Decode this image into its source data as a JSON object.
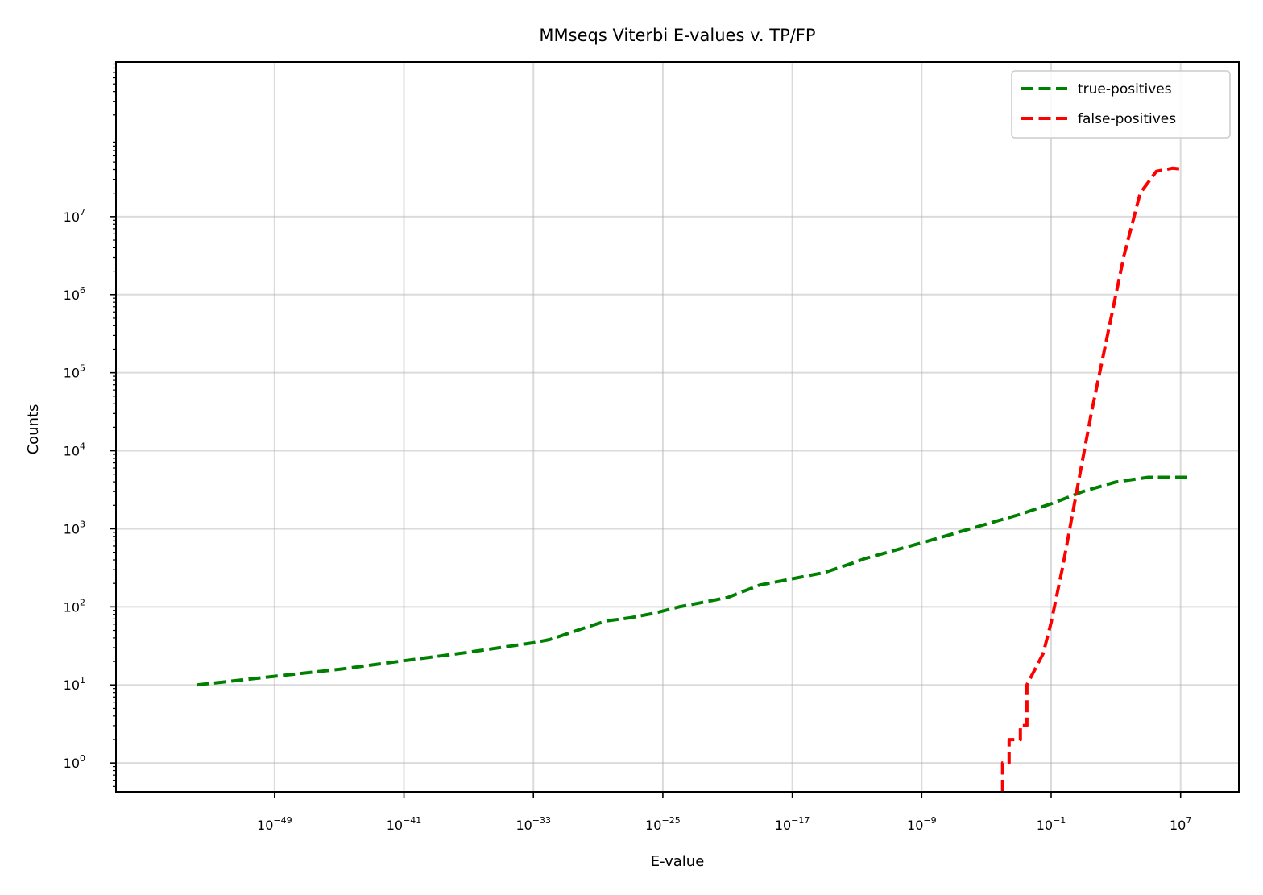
{
  "chart_data": {
    "type": "line",
    "title": "MMseqs Viterbi E-values v. TP/FP",
    "xlabel": "E-value",
    "ylabel": "Counts",
    "xscale": "log",
    "yscale": "log",
    "xlim_log10": [
      -58.8,
      10.6
    ],
    "ylim_log10": [
      -0.37,
      8.98
    ],
    "grid": true,
    "legend_position": "upper right",
    "x_ticks": [
      {
        "base": "10",
        "exp": "−49",
        "log10": -49
      },
      {
        "base": "10",
        "exp": "−41",
        "log10": -41
      },
      {
        "base": "10",
        "exp": "−33",
        "log10": -33
      },
      {
        "base": "10",
        "exp": "−25",
        "log10": -25
      },
      {
        "base": "10",
        "exp": "−17",
        "log10": -17
      },
      {
        "base": "10",
        "exp": "−9",
        "log10": -9
      },
      {
        "base": "10",
        "exp": "−1",
        "log10": -1
      },
      {
        "base": "10",
        "exp": "7",
        "log10": 7
      }
    ],
    "y_ticks": [
      {
        "base": "10",
        "exp": "0",
        "log10": 0
      },
      {
        "base": "10",
        "exp": "1",
        "log10": 1
      },
      {
        "base": "10",
        "exp": "2",
        "log10": 2
      },
      {
        "base": "10",
        "exp": "3",
        "log10": 3
      },
      {
        "base": "10",
        "exp": "4",
        "log10": 4
      },
      {
        "base": "10",
        "exp": "5",
        "log10": 5
      },
      {
        "base": "10",
        "exp": "6",
        "log10": 6
      },
      {
        "base": "10",
        "exp": "7",
        "log10": 7
      }
    ],
    "series": [
      {
        "name": "true-positives",
        "color": "#008000",
        "style": "dashed",
        "points_log10": [
          [
            -53.8,
            1.0
          ],
          [
            -49.0,
            1.11
          ],
          [
            -45.0,
            1.2
          ],
          [
            -41.0,
            1.31
          ],
          [
            -37.0,
            1.42
          ],
          [
            -33.0,
            1.54
          ],
          [
            -32.0,
            1.58
          ],
          [
            -30.0,
            1.72
          ],
          [
            -28.5,
            1.82
          ],
          [
            -27.0,
            1.86
          ],
          [
            -25.5,
            1.92
          ],
          [
            -24.0,
            2.0
          ],
          [
            -21.0,
            2.12
          ],
          [
            -19.0,
            2.28
          ],
          [
            -17.0,
            2.36
          ],
          [
            -15.0,
            2.44
          ],
          [
            -13.0,
            2.58
          ],
          [
            -12.5,
            2.62
          ],
          [
            -9.0,
            2.82
          ],
          [
            -5.0,
            3.06
          ],
          [
            -3.0,
            3.18
          ],
          [
            -1.0,
            3.32
          ],
          [
            1.0,
            3.48
          ],
          [
            3.0,
            3.6
          ],
          [
            5.0,
            3.66
          ],
          [
            7.0,
            3.66
          ],
          [
            7.5,
            3.66
          ]
        ]
      },
      {
        "name": "false-positives",
        "color": "#ff0000",
        "style": "dashed",
        "points_log10": [
          [
            -4.0,
            -0.37
          ],
          [
            -4.0,
            0.0
          ],
          [
            -3.6,
            0.0
          ],
          [
            -3.6,
            0.3
          ],
          [
            -2.9,
            0.3
          ],
          [
            -2.9,
            0.48
          ],
          [
            -2.5,
            0.48
          ],
          [
            -2.5,
            1.0
          ],
          [
            -2.0,
            1.2
          ],
          [
            -1.5,
            1.4
          ],
          [
            -1.0,
            1.8
          ],
          [
            -0.3,
            2.5
          ],
          [
            0.6,
            3.5
          ],
          [
            1.5,
            4.5
          ],
          [
            2.5,
            5.5
          ],
          [
            3.5,
            6.5
          ],
          [
            4.5,
            7.3
          ],
          [
            5.5,
            7.58
          ],
          [
            6.5,
            7.62
          ],
          [
            7.0,
            7.61
          ]
        ]
      }
    ]
  }
}
